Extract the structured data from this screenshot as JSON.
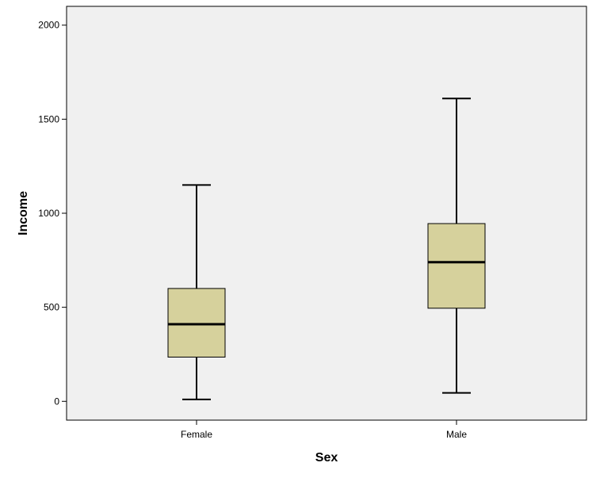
{
  "chart_data": {
    "type": "boxplot",
    "xlabel": "Sex",
    "ylabel": "Income",
    "ylim": [
      -100,
      2100
    ],
    "yticks": [
      0,
      500,
      1000,
      1500,
      2000
    ],
    "grid": false,
    "colors": {
      "plot_background": "#f0f0f0",
      "box_fill": "#d6d19c",
      "stroke": "#000000"
    },
    "categories": [
      "Female",
      "Male"
    ],
    "boxes": [
      {
        "category": "Female",
        "min": 10,
        "q1": 235,
        "median": 410,
        "q3": 600,
        "max": 1150
      },
      {
        "category": "Male",
        "min": 45,
        "q1": 495,
        "median": 740,
        "q3": 945,
        "max": 1610
      }
    ]
  }
}
